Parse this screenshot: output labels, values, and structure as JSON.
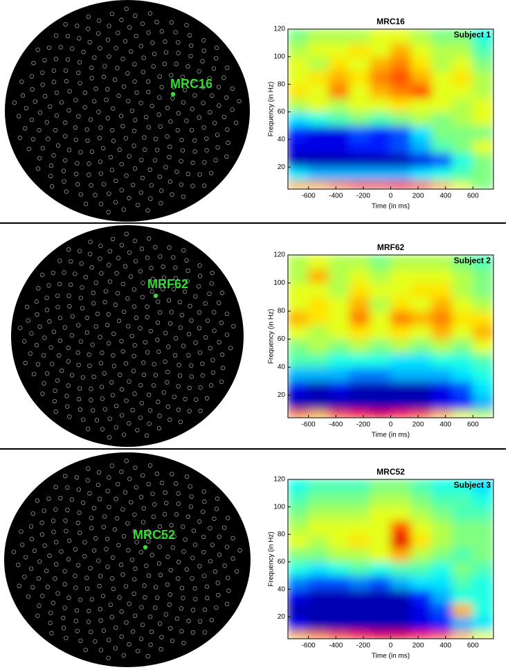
{
  "chart_data": [
    {
      "type": "heatmap",
      "title": "MRC16",
      "annotation": "Subject 1",
      "xlabel": "Time (in ms)",
      "ylabel": "Frequency (in Hz)",
      "colormap": "jet",
      "xlim": [
        -750,
        750
      ],
      "ylim": [
        4,
        120
      ],
      "xticks": [
        -600,
        -400,
        -200,
        0,
        200,
        400,
        600
      ],
      "yticks": [
        20,
        40,
        60,
        80,
        100,
        120
      ],
      "xbins": [
        -750,
        -600,
        -450,
        -300,
        -150,
        0,
        150,
        300,
        450,
        600,
        750
      ],
      "ybins": [
        4,
        10,
        20,
        30,
        40,
        50,
        60,
        70,
        80,
        90,
        100,
        110,
        120
      ],
      "values": [
        [
          0.7,
          0.7,
          0.75,
          0.8,
          0.8,
          0.85,
          0.8,
          0.7,
          0.6,
          0.5
        ],
        [
          0.35,
          0.3,
          0.3,
          0.3,
          0.3,
          0.3,
          0.35,
          0.4,
          0.45,
          0.5
        ],
        [
          0.05,
          0.05,
          0.05,
          0.05,
          0.05,
          0.05,
          0.1,
          0.2,
          0.4,
          0.5
        ],
        [
          0.1,
          0.1,
          0.1,
          0.15,
          0.15,
          0.2,
          0.3,
          0.45,
          0.5,
          0.6
        ],
        [
          0.15,
          0.1,
          0.1,
          0.2,
          0.15,
          0.2,
          0.35,
          0.5,
          0.5,
          0.5
        ],
        [
          0.35,
          0.4,
          0.45,
          0.5,
          0.45,
          0.5,
          0.55,
          0.5,
          0.55,
          0.6
        ],
        [
          0.55,
          0.6,
          0.55,
          0.6,
          0.6,
          0.65,
          0.6,
          0.6,
          0.55,
          0.6
        ],
        [
          0.65,
          0.6,
          0.75,
          0.6,
          0.7,
          0.75,
          0.8,
          0.6,
          0.6,
          0.55
        ],
        [
          0.6,
          0.65,
          0.7,
          0.65,
          0.75,
          0.8,
          0.7,
          0.6,
          0.65,
          0.55
        ],
        [
          0.6,
          0.55,
          0.65,
          0.6,
          0.7,
          0.75,
          0.65,
          0.55,
          0.6,
          0.5
        ],
        [
          0.55,
          0.6,
          0.6,
          0.65,
          0.6,
          0.7,
          0.6,
          0.55,
          0.55,
          0.45
        ],
        [
          0.5,
          0.55,
          0.55,
          0.55,
          0.6,
          0.6,
          0.55,
          0.5,
          0.5,
          0.4
        ]
      ]
    },
    {
      "type": "heatmap",
      "title": "MRF62",
      "annotation": "Subject 2",
      "xlabel": "Time (in ms)",
      "ylabel": "Frequency (in Hz)",
      "colormap": "jet",
      "xlim": [
        -750,
        750
      ],
      "ylim": [
        4,
        120
      ],
      "xticks": [
        -600,
        -400,
        -200,
        0,
        200,
        400,
        600
      ],
      "yticks": [
        20,
        40,
        60,
        80,
        100,
        120
      ],
      "xbins": [
        -750,
        -600,
        -450,
        -300,
        -150,
        0,
        150,
        300,
        450,
        600,
        750
      ],
      "ybins": [
        4,
        10,
        20,
        30,
        40,
        50,
        60,
        70,
        80,
        90,
        100,
        110,
        120
      ],
      "values": [
        [
          0.75,
          0.7,
          0.8,
          0.85,
          0.9,
          0.85,
          0.8,
          0.7,
          0.6,
          0.55
        ],
        [
          0.05,
          0.05,
          0.05,
          0.05,
          0.05,
          0.05,
          0.05,
          0.1,
          0.15,
          0.3
        ],
        [
          0.1,
          0.05,
          0.1,
          0.05,
          0.05,
          0.05,
          0.05,
          0.1,
          0.2,
          0.35
        ],
        [
          0.3,
          0.3,
          0.3,
          0.25,
          0.25,
          0.3,
          0.3,
          0.3,
          0.35,
          0.4
        ],
        [
          0.45,
          0.45,
          0.4,
          0.4,
          0.4,
          0.35,
          0.35,
          0.4,
          0.4,
          0.45
        ],
        [
          0.5,
          0.55,
          0.5,
          0.55,
          0.5,
          0.55,
          0.5,
          0.55,
          0.5,
          0.6
        ],
        [
          0.6,
          0.55,
          0.6,
          0.65,
          0.6,
          0.65,
          0.6,
          0.7,
          0.6,
          0.7
        ],
        [
          0.7,
          0.65,
          0.6,
          0.75,
          0.6,
          0.75,
          0.7,
          0.75,
          0.65,
          0.65
        ],
        [
          0.6,
          0.65,
          0.6,
          0.7,
          0.55,
          0.65,
          0.6,
          0.7,
          0.6,
          0.55
        ],
        [
          0.6,
          0.6,
          0.55,
          0.65,
          0.6,
          0.6,
          0.65,
          0.65,
          0.55,
          0.5
        ],
        [
          0.55,
          0.7,
          0.55,
          0.6,
          0.55,
          0.6,
          0.6,
          0.6,
          0.55,
          0.5
        ],
        [
          0.55,
          0.6,
          0.55,
          0.55,
          0.5,
          0.55,
          0.55,
          0.55,
          0.5,
          0.45
        ]
      ]
    },
    {
      "type": "heatmap",
      "title": "MRC52",
      "annotation": "Subject 3",
      "xlabel": "Time (in ms)",
      "ylabel": "Frequency (in Hz)",
      "colormap": "jet",
      "xlim": [
        -750,
        750
      ],
      "ylim": [
        4,
        120
      ],
      "xticks": [
        -600,
        -400,
        -200,
        0,
        200,
        400,
        600
      ],
      "yticks": [
        20,
        40,
        60,
        80,
        100,
        120
      ],
      "xbins": [
        -750,
        -600,
        -450,
        -300,
        -150,
        0,
        150,
        300,
        450,
        600,
        750
      ],
      "ybins": [
        4,
        10,
        20,
        30,
        40,
        50,
        60,
        70,
        80,
        90,
        100,
        110,
        120
      ],
      "values": [
        [
          0.7,
          0.75,
          0.8,
          0.85,
          0.9,
          0.9,
          0.85,
          0.8,
          0.7,
          0.6
        ],
        [
          0.1,
          0.05,
          0.05,
          0.05,
          0.05,
          0.05,
          0.1,
          0.15,
          0.3,
          0.35
        ],
        [
          0.05,
          0.05,
          0.05,
          0.05,
          0.05,
          0.05,
          0.1,
          0.2,
          0.7,
          0.4
        ],
        [
          0.1,
          0.05,
          0.05,
          0.05,
          0.05,
          0.05,
          0.15,
          0.3,
          0.4,
          0.4
        ],
        [
          0.25,
          0.2,
          0.2,
          0.25,
          0.2,
          0.3,
          0.35,
          0.35,
          0.45,
          0.4
        ],
        [
          0.4,
          0.35,
          0.4,
          0.45,
          0.4,
          0.45,
          0.45,
          0.4,
          0.5,
          0.45
        ],
        [
          0.5,
          0.5,
          0.55,
          0.55,
          0.6,
          0.7,
          0.55,
          0.5,
          0.45,
          0.5
        ],
        [
          0.6,
          0.55,
          0.6,
          0.65,
          0.6,
          0.9,
          0.65,
          0.55,
          0.5,
          0.5
        ],
        [
          0.55,
          0.6,
          0.6,
          0.6,
          0.6,
          0.8,
          0.6,
          0.55,
          0.5,
          0.5
        ],
        [
          0.5,
          0.55,
          0.55,
          0.55,
          0.6,
          0.6,
          0.55,
          0.5,
          0.45,
          0.45
        ],
        [
          0.45,
          0.5,
          0.5,
          0.5,
          0.55,
          0.55,
          0.5,
          0.45,
          0.45,
          0.4
        ],
        [
          0.4,
          0.45,
          0.45,
          0.45,
          0.5,
          0.5,
          0.45,
          0.4,
          0.4,
          0.35
        ]
      ]
    }
  ]
}
